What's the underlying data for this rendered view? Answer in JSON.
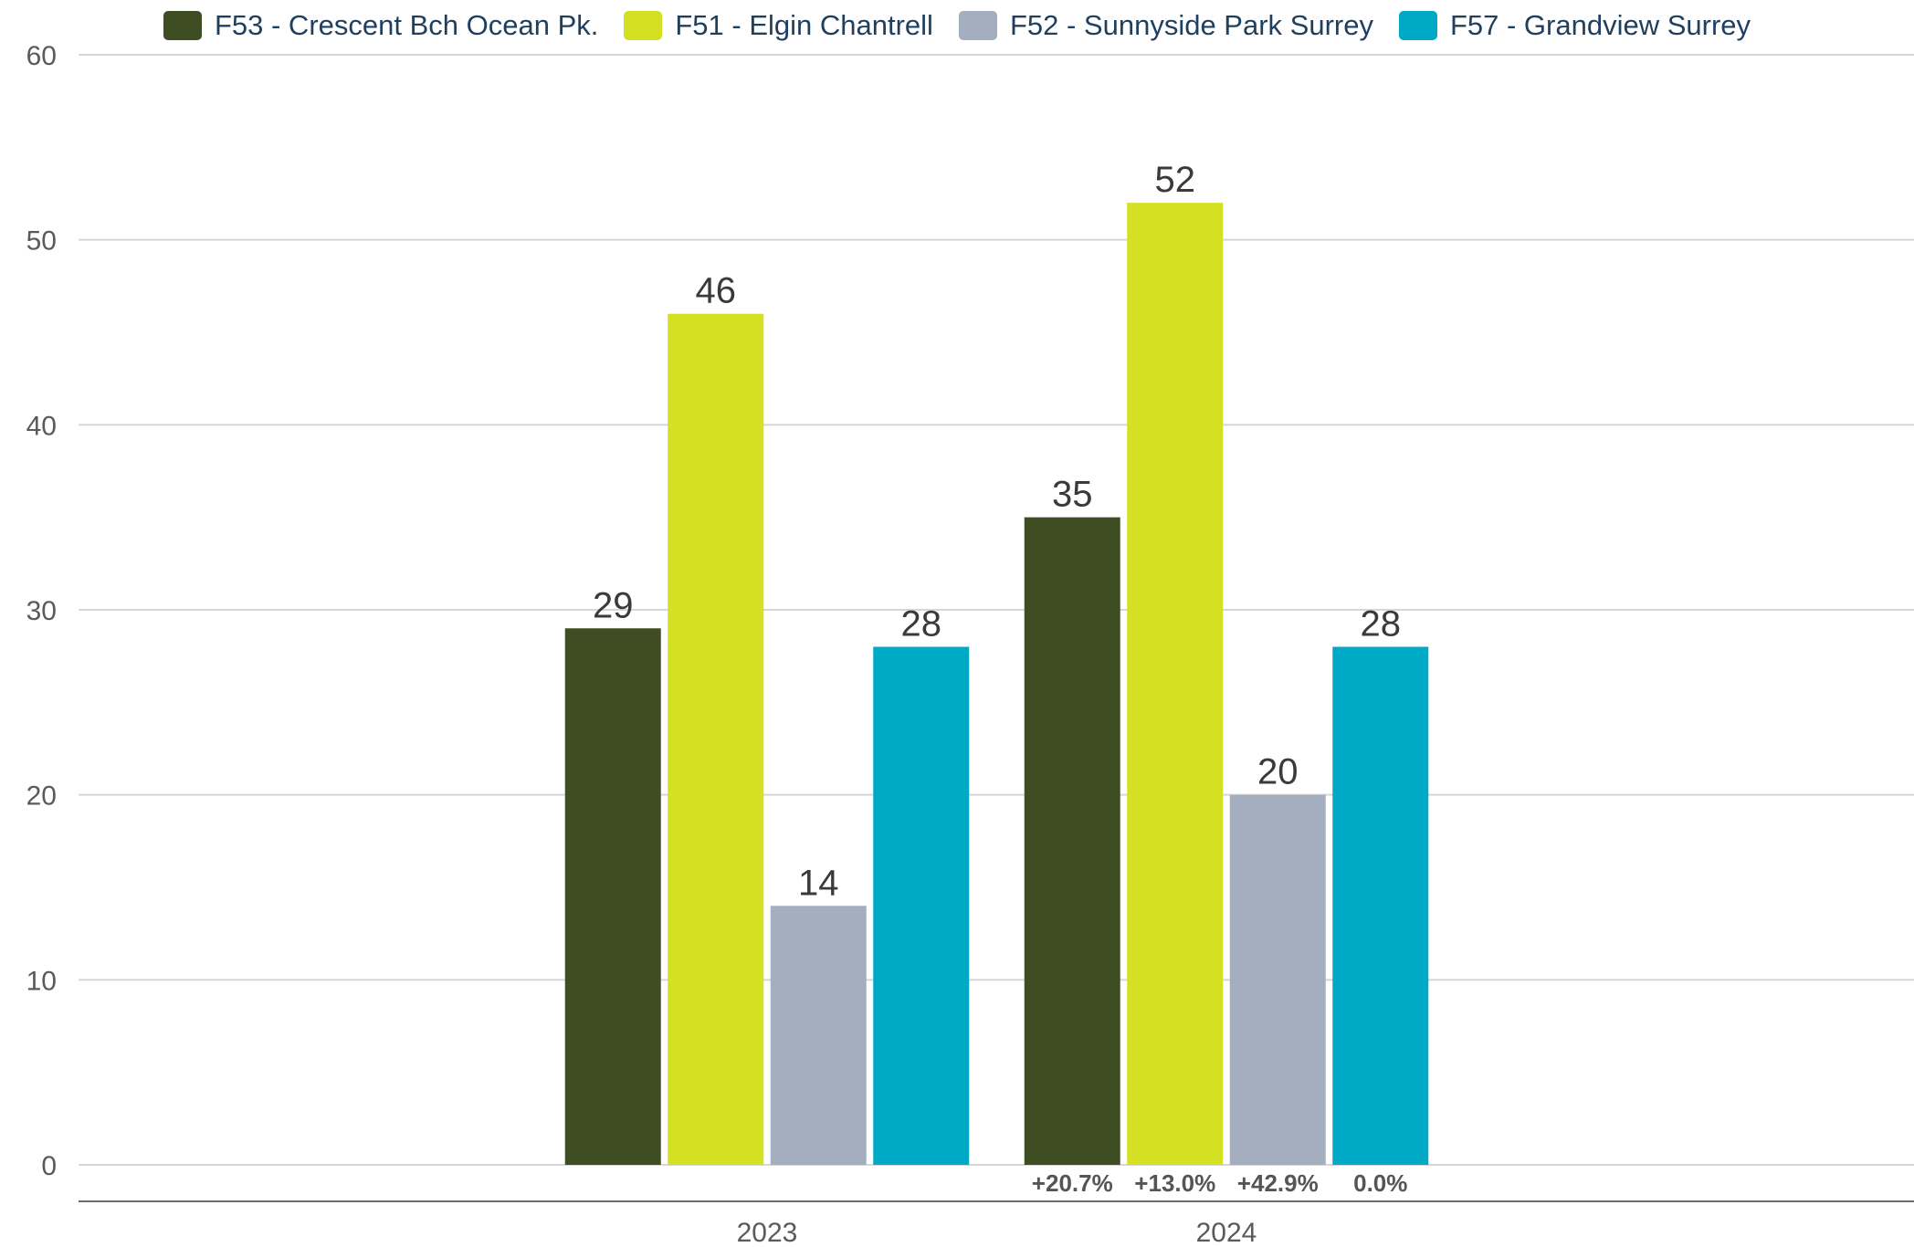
{
  "chart_data": {
    "type": "bar",
    "title": "",
    "xlabel": "",
    "ylabel": "",
    "categories": [
      "2023",
      "2024"
    ],
    "ylim": [
      0,
      60
    ],
    "yticks": [
      0,
      10,
      20,
      30,
      40,
      50,
      60
    ],
    "grid": true,
    "legend_position": "top",
    "series": [
      {
        "name": "F53 - Crescent Bch Ocean Pk.",
        "color": "#3f4d22",
        "values": [
          29,
          35
        ]
      },
      {
        "name": "F51 - Elgin Chantrell",
        "color": "#d4e123",
        "values": [
          46,
          52
        ]
      },
      {
        "name": "F52 - Sunnyside Park Surrey",
        "color": "#a3aebf",
        "values": [
          14,
          20
        ]
      },
      {
        "name": "F57 - Grandview Surrey",
        "color": "#00a9c5",
        "values": [
          28,
          28
        ]
      }
    ],
    "change_labels": {
      "category": "2024",
      "values": [
        "+20.7%",
        "+13.0%",
        "+42.9%",
        "0.0%"
      ]
    }
  }
}
